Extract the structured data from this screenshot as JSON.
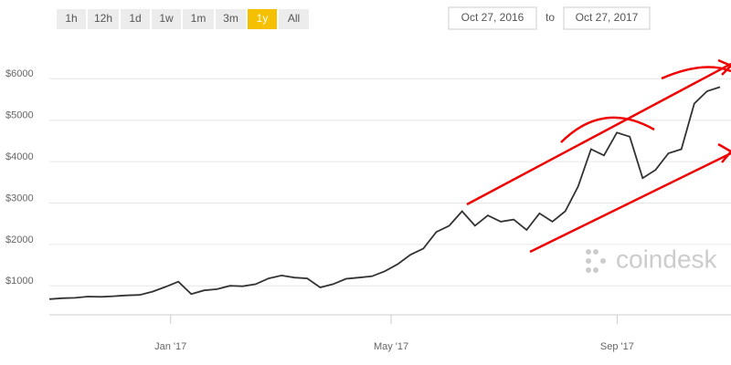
{
  "toolbar": {
    "ranges": [
      "1h",
      "12h",
      "1d",
      "1w",
      "1m",
      "3m",
      "1y",
      "All"
    ],
    "active": 6,
    "date_from": "Oct 27, 2016",
    "to": "to",
    "date_to": "Oct 27, 2017"
  },
  "watermark": "coindesk",
  "chart_data": {
    "type": "line",
    "xlim": [
      "2016-10-27",
      "2017-10-27"
    ],
    "xticks": [
      {
        "value": "2017-01",
        "label": "Jan '17"
      },
      {
        "value": "2017-05",
        "label": "May '17"
      },
      {
        "value": "2017-09",
        "label": "Sep '17"
      }
    ],
    "ylim": [
      300,
      6800
    ],
    "yticks": [
      {
        "value": 1000,
        "label": "$1000"
      },
      {
        "value": 2000,
        "label": "$2000"
      },
      {
        "value": 3000,
        "label": "$3000"
      },
      {
        "value": 4000,
        "label": "$4000"
      },
      {
        "value": 5000,
        "label": "$5000"
      },
      {
        "value": 6000,
        "label": "$6000"
      }
    ],
    "grid": true,
    "color": "#333333",
    "values": [
      680,
      700,
      710,
      740,
      735,
      750,
      770,
      780,
      860,
      975,
      1100,
      800,
      890,
      920,
      1000,
      990,
      1040,
      1180,
      1250,
      1200,
      1180,
      960,
      1040,
      1170,
      1200,
      1230,
      1350,
      1520,
      1750,
      1900,
      2300,
      2450,
      2800,
      2450,
      2700,
      2550,
      2600,
      2350,
      2750,
      2550,
      2800,
      3400,
      4300,
      4150,
      4700,
      4600,
      3600,
      3800,
      4200,
      4300,
      5400,
      5700,
      5800
    ]
  }
}
